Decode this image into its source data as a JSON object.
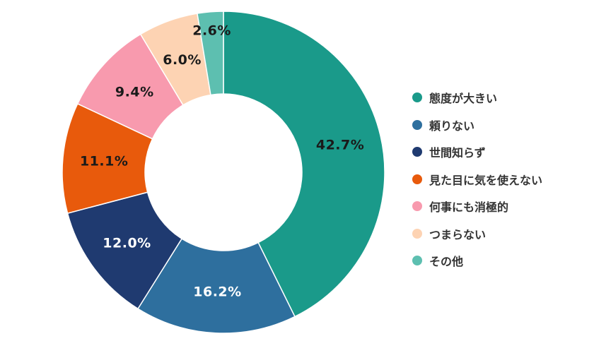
{
  "chart_data": {
    "type": "pie",
    "variant": "donut",
    "categories": [
      "態度が大きい",
      "頼りない",
      "世間知らず",
      "見た目に気を使えない",
      "何事にも消極的",
      "つまらない",
      "その他"
    ],
    "values": [
      42.7,
      16.2,
      12.0,
      11.1,
      9.4,
      6.0,
      2.6
    ],
    "data_labels": [
      "42.7%",
      "16.2%",
      "12.0%",
      "11.1%",
      "9.4%",
      "6.0%",
      "2.6%"
    ],
    "colors": [
      "#1a9a8a",
      "#2e6f9e",
      "#1f3a70",
      "#e85a0c",
      "#f89aae",
      "#fdd3b3",
      "#5dbfb0"
    ],
    "label_colors": [
      "#1a1a1a",
      "#ffffff",
      "#ffffff",
      "#1a1a1a",
      "#1a1a1a",
      "#1a1a1a",
      "#1a1a1a"
    ],
    "legend_position": "right",
    "title": ""
  }
}
